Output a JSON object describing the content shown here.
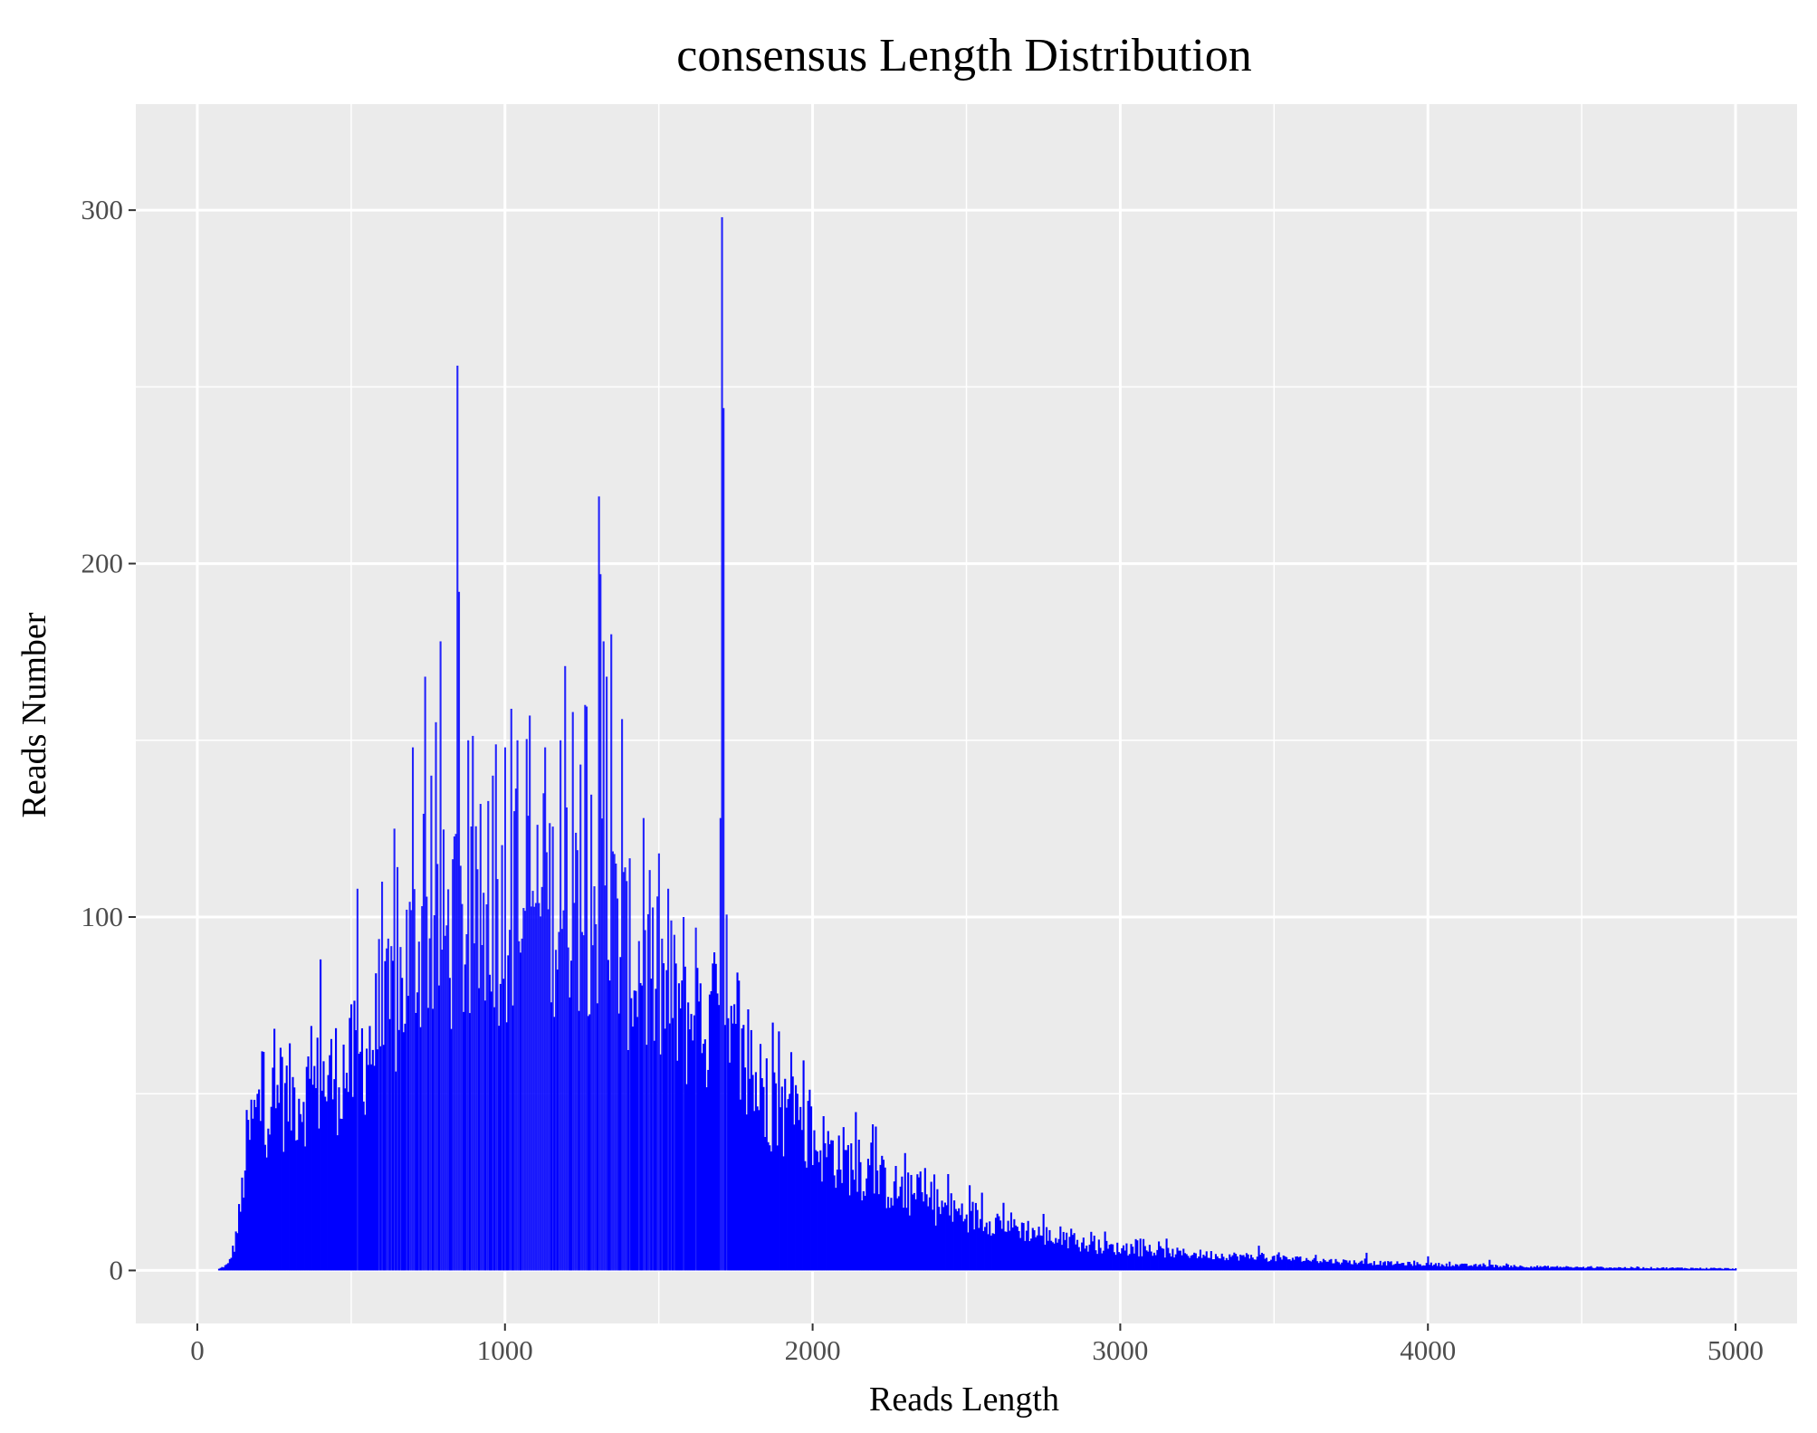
{
  "chart_data": {
    "type": "bar",
    "title": "consensus Length Distribution",
    "xlabel": "Reads Length",
    "ylabel": "Reads Number",
    "xlim": [
      -200,
      5200
    ],
    "ylim": [
      -15,
      330
    ],
    "x_ticks": [
      0,
      1000,
      2000,
      3000,
      4000,
      5000
    ],
    "x_tick_labels": [
      "0",
      "1000",
      "2000",
      "3000",
      "4000",
      "5000"
    ],
    "y_ticks": [
      0,
      100,
      200,
      300
    ],
    "y_tick_labels": [
      "0",
      "100",
      "200",
      "300"
    ],
    "x_minor_ticks": [
      500,
      1500,
      2500,
      3500,
      4500
    ],
    "y_minor_ticks": [
      50,
      150,
      250
    ],
    "grid": true,
    "panel_color": "#ebebeb",
    "grid_color": "#ffffff",
    "bar_color": "#0000ff",
    "bar_width": 5,
    "envelope": [
      [
        60,
        0
      ],
      [
        100,
        2
      ],
      [
        120,
        8
      ],
      [
        140,
        20
      ],
      [
        160,
        40
      ],
      [
        180,
        48
      ],
      [
        200,
        52
      ],
      [
        300,
        56
      ],
      [
        400,
        60
      ],
      [
        500,
        66
      ],
      [
        600,
        78
      ],
      [
        650,
        88
      ],
      [
        700,
        105
      ],
      [
        750,
        112
      ],
      [
        800,
        110
      ],
      [
        850,
        108
      ],
      [
        900,
        110
      ],
      [
        1000,
        115
      ],
      [
        1100,
        120
      ],
      [
        1200,
        118
      ],
      [
        1300,
        118
      ],
      [
        1350,
        112
      ],
      [
        1400,
        102
      ],
      [
        1500,
        92
      ],
      [
        1600,
        82
      ],
      [
        1700,
        75
      ],
      [
        1800,
        62
      ],
      [
        1900,
        52
      ],
      [
        2000,
        42
      ],
      [
        2100,
        36
      ],
      [
        2200,
        30
      ],
      [
        2300,
        25
      ],
      [
        2400,
        21
      ],
      [
        2500,
        18
      ],
      [
        2600,
        16
      ],
      [
        2700,
        13
      ],
      [
        2800,
        10
      ],
      [
        2900,
        8
      ],
      [
        3000,
        7
      ],
      [
        3200,
        5.5
      ],
      [
        3400,
        4.5
      ],
      [
        3600,
        3.5
      ],
      [
        3800,
        2.5
      ],
      [
        4000,
        2
      ],
      [
        4200,
        1.5
      ],
      [
        4500,
        1
      ],
      [
        4800,
        0.8
      ],
      [
        5000,
        0.6
      ]
    ],
    "peaks": [
      [
        210,
        62
      ],
      [
        270,
        63
      ],
      [
        400,
        88
      ],
      [
        520,
        108
      ],
      [
        600,
        110
      ],
      [
        640,
        125
      ],
      [
        700,
        148
      ],
      [
        740,
        168
      ],
      [
        760,
        140
      ],
      [
        790,
        178
      ],
      [
        845,
        256
      ],
      [
        850,
        192
      ],
      [
        880,
        150
      ],
      [
        920,
        132
      ],
      [
        960,
        140
      ],
      [
        1000,
        148
      ],
      [
        1040,
        150
      ],
      [
        1080,
        157
      ],
      [
        1130,
        148
      ],
      [
        1180,
        150
      ],
      [
        1195,
        171
      ],
      [
        1220,
        158
      ],
      [
        1260,
        160
      ],
      [
        1305,
        219
      ],
      [
        1310,
        197
      ],
      [
        1320,
        178
      ],
      [
        1330,
        168
      ],
      [
        1345,
        180
      ],
      [
        1380,
        156
      ],
      [
        1450,
        128
      ],
      [
        1500,
        118
      ],
      [
        1530,
        108
      ],
      [
        1580,
        100
      ],
      [
        1620,
        97
      ],
      [
        1680,
        90
      ],
      [
        1700,
        128
      ],
      [
        1705,
        298
      ],
      [
        1708,
        285
      ],
      [
        1712,
        244
      ],
      [
        1760,
        82
      ],
      [
        1800,
        68
      ],
      [
        1850,
        60
      ],
      [
        1950,
        50
      ],
      [
        2150,
        37
      ],
      [
        2350,
        28
      ],
      [
        2550,
        22
      ],
      [
        2750,
        16
      ],
      [
        2950,
        11
      ],
      [
        3150,
        9
      ],
      [
        3450,
        7
      ],
      [
        3800,
        5
      ],
      [
        4000,
        4
      ],
      [
        4200,
        3
      ]
    ]
  }
}
